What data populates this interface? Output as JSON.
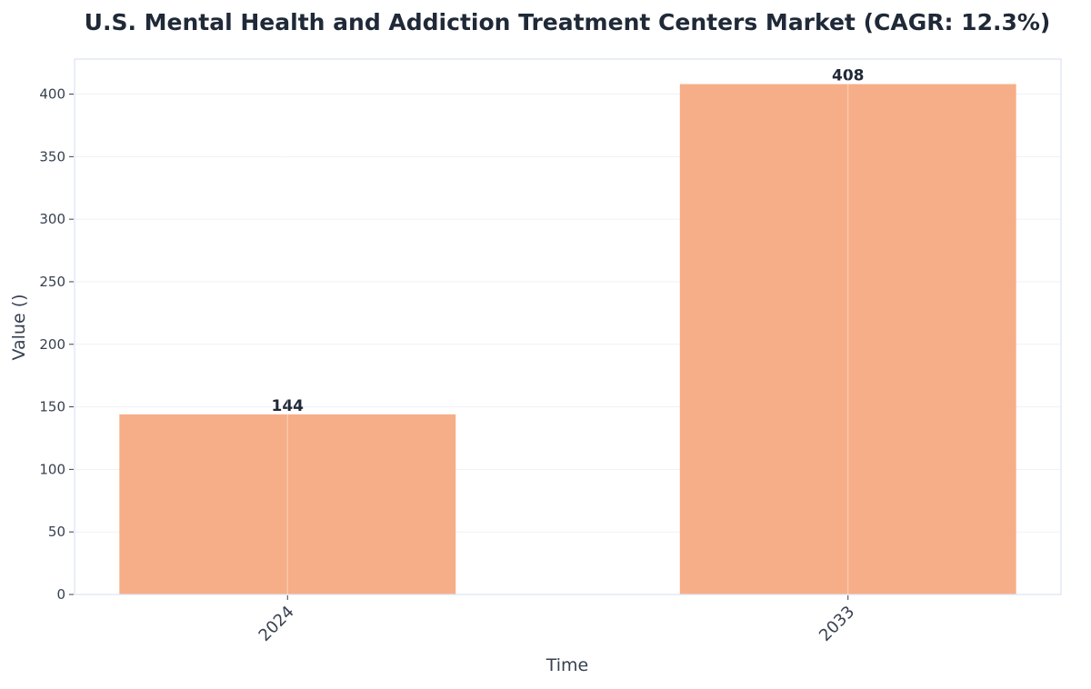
{
  "chart_data": {
    "type": "bar",
    "title": "U.S. Mental Health and Addiction Treatment Centers Market (CAGR: 12.3%)",
    "xlabel": "Time",
    "ylabel": "Value ()",
    "categories": [
      "2024",
      "2033"
    ],
    "values": [
      144,
      408
    ],
    "data_labels": [
      "144",
      "408"
    ],
    "ylim": [
      0,
      428
    ],
    "yticks": [
      0,
      50,
      100,
      150,
      200,
      250,
      300,
      350,
      400
    ],
    "grid": true,
    "bar_color": "#f6ae88",
    "title_color": "#1f2937",
    "text_color": "#374151",
    "frame_color": "#dbe3ef"
  }
}
